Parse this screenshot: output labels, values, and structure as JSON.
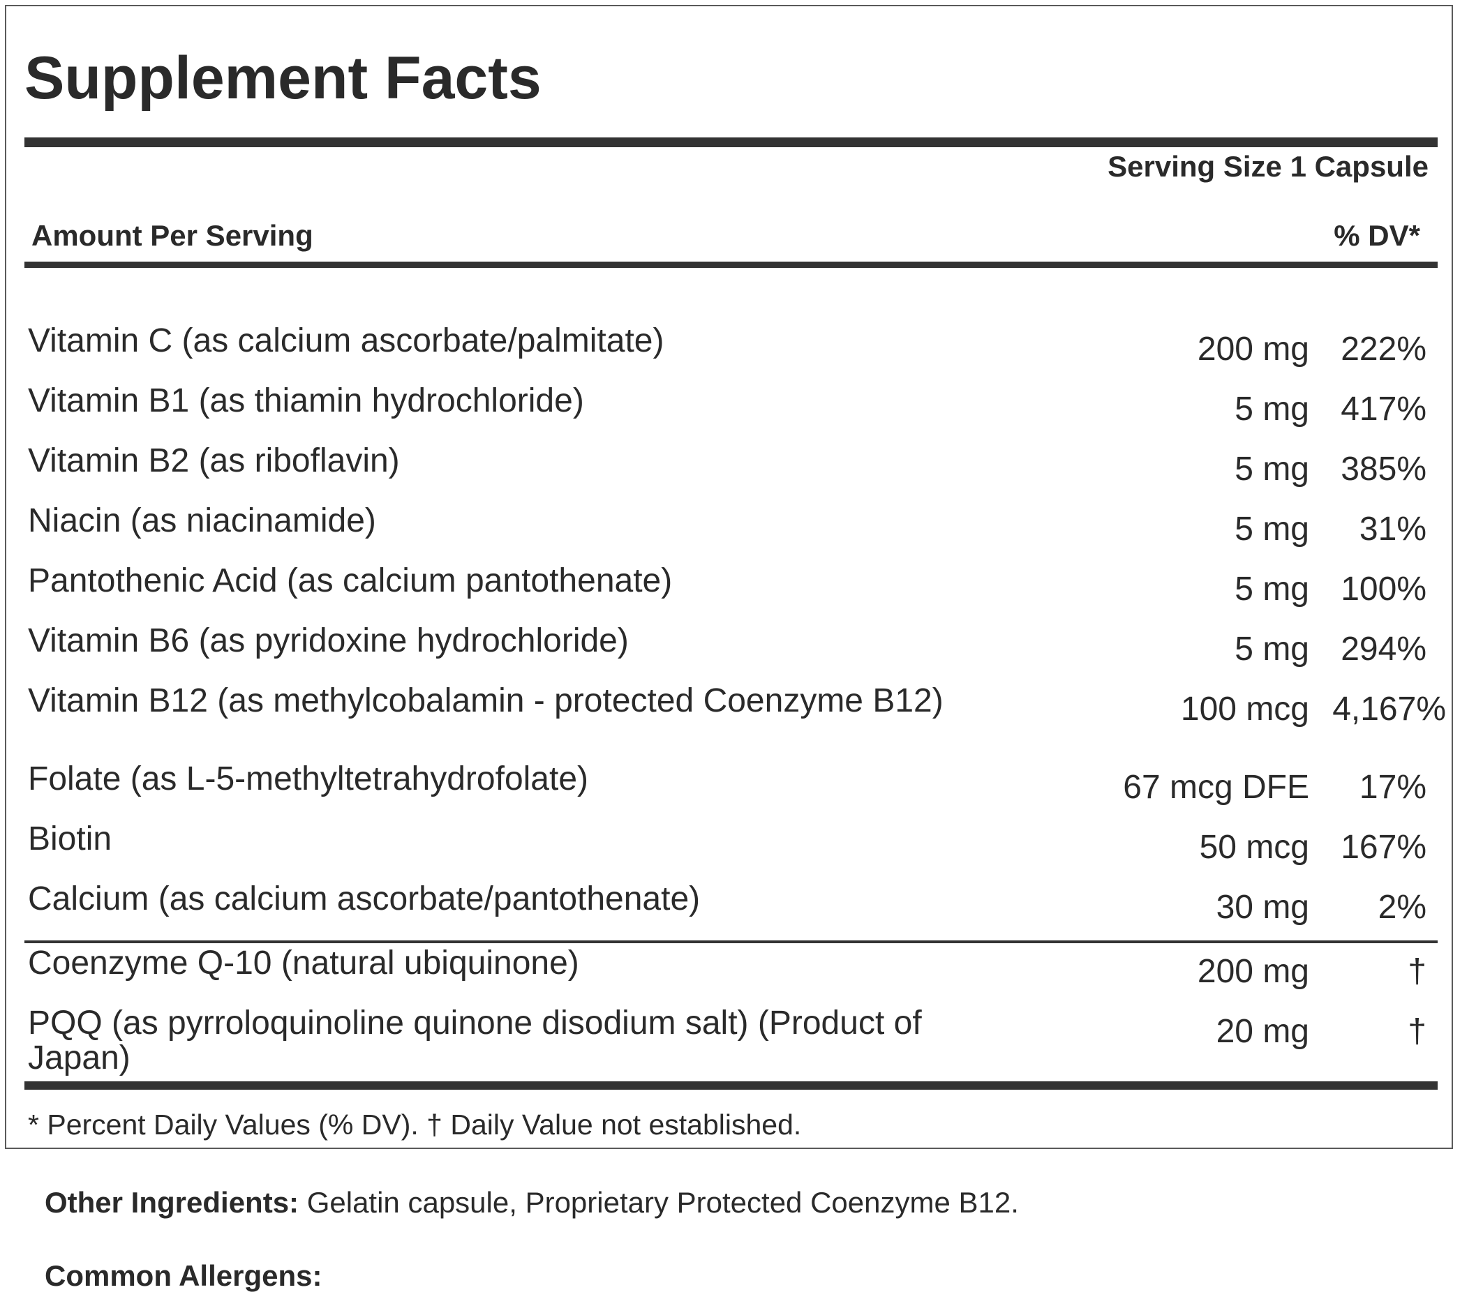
{
  "title": "Supplement Facts",
  "serving_size": "Serving Size 1 Capsule",
  "amount_per_serving": "Amount Per Serving",
  "dv_header": "% DV*",
  "nutrients": [
    {
      "name": "Vitamin C (as calcium ascorbate/palmitate)",
      "amount": "200 mg",
      "dv": "222%"
    },
    {
      "name": "Vitamin B1 (as thiamin hydrochloride)",
      "amount": "5 mg",
      "dv": "417%"
    },
    {
      "name": "Vitamin B2 (as riboflavin)",
      "amount": "5 mg",
      "dv": "385%"
    },
    {
      "name": "Niacin (as niacinamide)",
      "amount": "5 mg",
      "dv": "31%"
    },
    {
      "name": "Pantothenic Acid (as calcium pantothenate)",
      "amount": "5 mg",
      "dv": "100%"
    },
    {
      "name": "Vitamin B6 (as pyridoxine hydrochloride)",
      "amount": "5 mg",
      "dv": "294%"
    },
    {
      "name": "Vitamin B12 (as methylcobalamin - protected Coenzyme B12)",
      "amount": "100 mcg",
      "dv": "4,167%"
    },
    {
      "name": "Folate (as L-5-methyltetrahydrofolate)",
      "amount": "67 mcg DFE",
      "dv": "17%"
    },
    {
      "name": "Biotin",
      "amount": "50 mcg",
      "dv": "167%"
    },
    {
      "name": "Calcium (as calcium ascorbate/pantothenate)",
      "amount": "30 mg",
      "dv": "2%"
    }
  ],
  "other_nutrients": [
    {
      "name": "Coenzyme Q-10 (natural ubiquinone)",
      "amount": "200 mg",
      "dv": "†"
    },
    {
      "name": "PQQ (as pyrroloquinoline quinone disodium salt) (Product of Japan)",
      "amount": "20 mg",
      "dv": "†"
    }
  ],
  "footnote": "* Percent Daily Values (% DV). † Daily Value not established.",
  "other_ingredients": {
    "label": "Other Ingredients:",
    "text": " Gelatin capsule, Proprietary Protected Coenzyme B12."
  },
  "common_allergens": {
    "label": "Common Allergens:"
  }
}
